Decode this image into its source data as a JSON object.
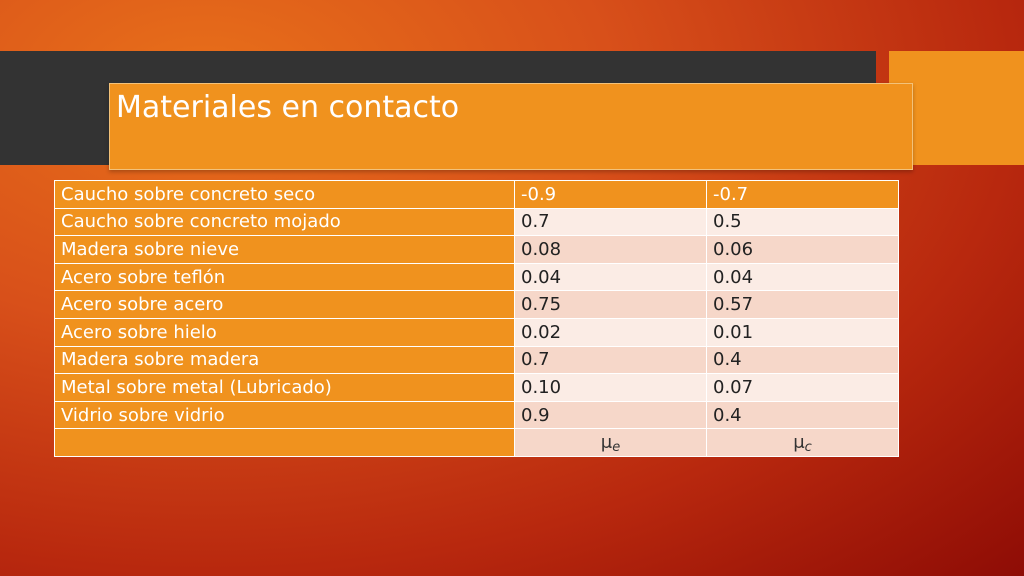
{
  "title": "Materiales en contacto",
  "rows": [
    {
      "material": "Caucho sobre concreto seco",
      "mu_e": "-0.9",
      "mu_c": "-0.7"
    },
    {
      "material": "Caucho sobre concreto mojado",
      "mu_e": "0.7",
      "mu_c": "0.5"
    },
    {
      "material": "Madera sobre nieve",
      "mu_e": "0.08",
      "mu_c": "0.06"
    },
    {
      "material": "Acero sobre teflón",
      "mu_e": "0.04",
      "mu_c": "0.04"
    },
    {
      "material": "Acero sobre acero",
      "mu_e": "0.75",
      "mu_c": "0.57"
    },
    {
      "material": "Acero sobre hielo",
      "mu_e": "0.02",
      "mu_c": "0.01"
    },
    {
      "material": "Madera sobre madera",
      "mu_e": "0.7",
      "mu_c": "0.4"
    },
    {
      "material": "Metal sobre metal (Lubricado)",
      "mu_e": "0.10",
      "mu_c": "0.07"
    },
    {
      "material": "Vidrio sobre vidrio",
      "mu_e": "0.9",
      "mu_c": "0.4"
    }
  ],
  "footer": {
    "mu_e_symbol": "μ",
    "mu_e_sub": "e",
    "mu_c_symbol": "μ",
    "mu_c_sub": "c"
  },
  "colors": {
    "accent_orange": "#f0921e",
    "dark_band": "#333333",
    "row_light": "#fbece5",
    "row_dark": "#f6d7c9"
  }
}
